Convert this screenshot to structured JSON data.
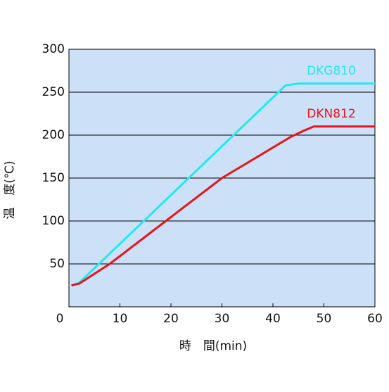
{
  "chart_data": {
    "type": "line",
    "xlabel": "時　間(min)",
    "ylabel": "温　度(℃)",
    "xlim": [
      0,
      60
    ],
    "ylim": [
      0,
      300
    ],
    "xticks": [
      0,
      10,
      20,
      30,
      40,
      50,
      60
    ],
    "yticks": [
      50,
      100,
      150,
      200,
      250,
      300
    ],
    "grid": true,
    "background": "#cce1f7",
    "series": [
      {
        "name": "DKG810",
        "color": "#22e8f0",
        "x": [
          0.5,
          2,
          42.5,
          45,
          60
        ],
        "values": [
          25,
          28,
          258,
          260,
          260
        ]
      },
      {
        "name": "DKN812",
        "color": "#e8141e",
        "x": [
          0.5,
          2,
          8,
          19,
          30,
          43.5,
          46,
          48,
          60
        ],
        "values": [
          25,
          27,
          50,
          100,
          150,
          198,
          205,
          210,
          210
        ]
      }
    ]
  }
}
